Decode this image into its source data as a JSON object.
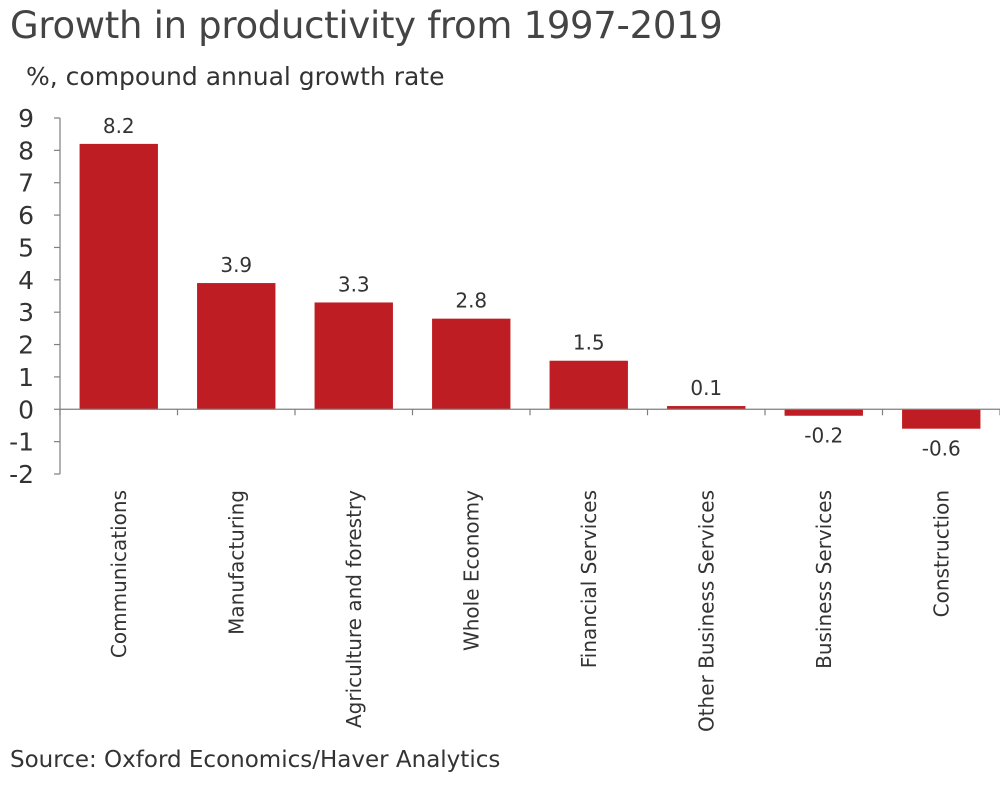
{
  "header": {
    "title": "Growth in productivity from 1997-2019",
    "subtitle": "%, compound annual growth rate"
  },
  "footer": {
    "source": "Source: Oxford Economics/Haver Analytics"
  },
  "colors": {
    "bar": "#be1e23",
    "axis": "#7f7f7f",
    "text": "#333333"
  },
  "chart_data": {
    "type": "bar",
    "title": "Growth in productivity from 1997-2019",
    "ylabel": "%, compound annual growth rate",
    "xlabel": "",
    "categories": [
      "Communications",
      "Manufacturing",
      "Agriculture and forestry",
      "Whole Economy",
      "Financial Services",
      "Other Business Services",
      "Business Services",
      "Construction"
    ],
    "values": [
      8.2,
      3.9,
      3.3,
      2.8,
      1.5,
      0.1,
      -0.2,
      -0.6
    ],
    "data_labels": [
      "8.2",
      "3.9",
      "3.3",
      "2.8",
      "1.5",
      "0.1",
      "-0.2",
      "-0.6"
    ],
    "ylim": [
      -2,
      9
    ],
    "yticks": [
      9,
      8,
      7,
      6,
      5,
      4,
      3,
      2,
      1,
      0,
      -1,
      -2
    ],
    "grid": false,
    "legend": "none"
  }
}
